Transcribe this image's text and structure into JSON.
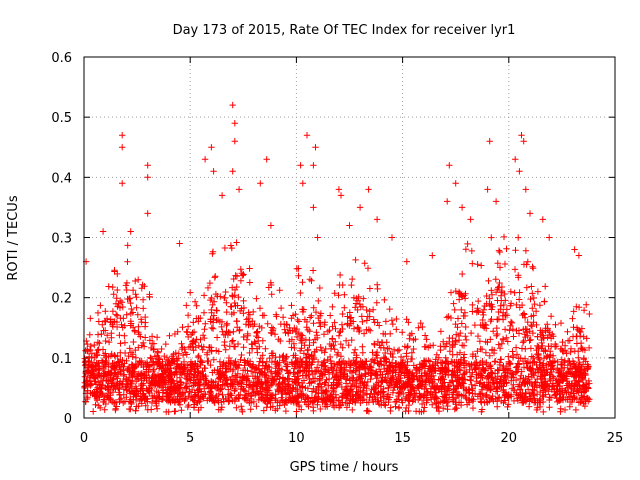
{
  "chart_data": {
    "type": "scatter",
    "title": "Day 173 of 2015, Rate Of TEC Index for receiver lyr1",
    "xlabel": "GPS time / hours",
    "ylabel": "ROTI / TECUs",
    "xlim": [
      0,
      25
    ],
    "ylim": [
      0,
      0.6
    ],
    "x_ticks": [
      "0",
      "5",
      "10",
      "15",
      "20",
      "25"
    ],
    "y_ticks": [
      "0",
      "0.1",
      "0.2",
      "0.3",
      "0.4",
      "0.5",
      "0.6"
    ],
    "grid": true,
    "marker": "+",
    "color": "#ff0000",
    "series": [
      {
        "name": "ROTI",
        "envelope": {
          "hours": [
            0,
            0.5,
            1,
            1.5,
            2,
            2.5,
            3,
            3.5,
            4,
            4.5,
            5,
            5.5,
            6,
            6.5,
            7,
            7.5,
            8,
            8.5,
            9,
            9.5,
            10,
            10.5,
            11,
            11.5,
            12,
            12.5,
            13,
            13.5,
            14,
            14.5,
            15,
            15.5,
            16,
            16.5,
            17,
            17.5,
            18,
            18.5,
            19,
            19.5,
            20,
            20.5,
            21,
            21.5,
            22,
            22.5,
            23,
            23.5,
            23.8
          ],
          "typical_max": [
            0.17,
            0.14,
            0.2,
            0.24,
            0.27,
            0.22,
            0.2,
            0.13,
            0.12,
            0.14,
            0.19,
            0.16,
            0.26,
            0.28,
            0.3,
            0.25,
            0.22,
            0.19,
            0.22,
            0.2,
            0.25,
            0.22,
            0.24,
            0.18,
            0.22,
            0.25,
            0.26,
            0.22,
            0.19,
            0.16,
            0.14,
            0.17,
            0.13,
            0.12,
            0.17,
            0.26,
            0.28,
            0.25,
            0.27,
            0.29,
            0.27,
            0.28,
            0.24,
            0.2,
            0.2,
            0.14,
            0.18,
            0.18,
            0.16
          ],
          "min": 0.01
        },
        "outliers": [
          {
            "x": 0.1,
            "y": 0.26
          },
          {
            "x": 0.9,
            "y": 0.31
          },
          {
            "x": 1.8,
            "y": 0.47
          },
          {
            "x": 1.8,
            "y": 0.45
          },
          {
            "x": 1.8,
            "y": 0.39
          },
          {
            "x": 2.2,
            "y": 0.31
          },
          {
            "x": 3.0,
            "y": 0.42
          },
          {
            "x": 3.0,
            "y": 0.4
          },
          {
            "x": 3.0,
            "y": 0.34
          },
          {
            "x": 4.5,
            "y": 0.29
          },
          {
            "x": 5.7,
            "y": 0.43
          },
          {
            "x": 6.0,
            "y": 0.45
          },
          {
            "x": 6.1,
            "y": 0.41
          },
          {
            "x": 6.5,
            "y": 0.37
          },
          {
            "x": 7.0,
            "y": 0.52
          },
          {
            "x": 7.1,
            "y": 0.49
          },
          {
            "x": 7.1,
            "y": 0.46
          },
          {
            "x": 7.0,
            "y": 0.41
          },
          {
            "x": 7.3,
            "y": 0.38
          },
          {
            "x": 8.3,
            "y": 0.39
          },
          {
            "x": 8.6,
            "y": 0.43
          },
          {
            "x": 8.8,
            "y": 0.32
          },
          {
            "x": 10.2,
            "y": 0.42
          },
          {
            "x": 10.3,
            "y": 0.39
          },
          {
            "x": 10.5,
            "y": 0.47
          },
          {
            "x": 10.9,
            "y": 0.45
          },
          {
            "x": 10.8,
            "y": 0.42
          },
          {
            "x": 10.8,
            "y": 0.35
          },
          {
            "x": 11.0,
            "y": 0.3
          },
          {
            "x": 12.0,
            "y": 0.38
          },
          {
            "x": 12.1,
            "y": 0.37
          },
          {
            "x": 12.5,
            "y": 0.32
          },
          {
            "x": 13.0,
            "y": 0.35
          },
          {
            "x": 13.4,
            "y": 0.38
          },
          {
            "x": 13.8,
            "y": 0.33
          },
          {
            "x": 14.5,
            "y": 0.3
          },
          {
            "x": 15.2,
            "y": 0.26
          },
          {
            "x": 16.4,
            "y": 0.27
          },
          {
            "x": 17.2,
            "y": 0.42
          },
          {
            "x": 17.5,
            "y": 0.39
          },
          {
            "x": 17.1,
            "y": 0.36
          },
          {
            "x": 17.8,
            "y": 0.35
          },
          {
            "x": 18.2,
            "y": 0.33
          },
          {
            "x": 19.1,
            "y": 0.46
          },
          {
            "x": 19.0,
            "y": 0.38
          },
          {
            "x": 19.4,
            "y": 0.36
          },
          {
            "x": 20.3,
            "y": 0.43
          },
          {
            "x": 20.5,
            "y": 0.41
          },
          {
            "x": 20.6,
            "y": 0.47
          },
          {
            "x": 20.7,
            "y": 0.46
          },
          {
            "x": 20.8,
            "y": 0.38
          },
          {
            "x": 21.0,
            "y": 0.34
          },
          {
            "x": 21.6,
            "y": 0.33
          },
          {
            "x": 21.9,
            "y": 0.3
          },
          {
            "x": 23.1,
            "y": 0.28
          },
          {
            "x": 23.3,
            "y": 0.27
          }
        ]
      }
    ]
  }
}
